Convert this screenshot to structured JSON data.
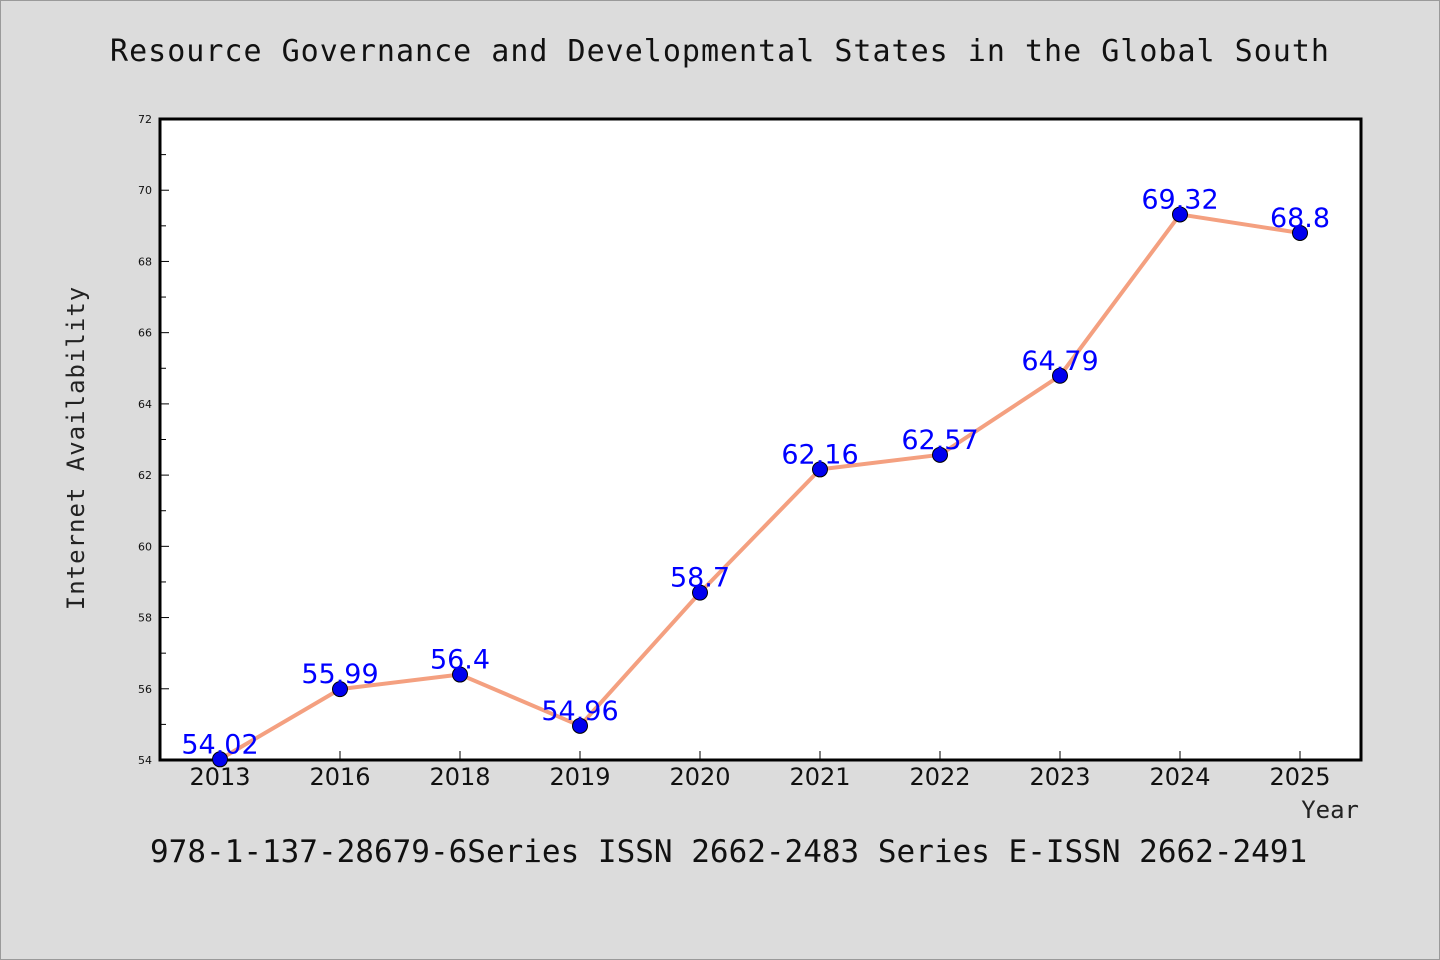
{
  "chart_data": {
    "type": "line",
    "title": "Resource Governance and Developmental States in the Global South",
    "xlabel": "Year",
    "ylabel": "Internet Availability",
    "categories": [
      "2013",
      "2016",
      "2018",
      "2019",
      "2020",
      "2021",
      "2022",
      "2023",
      "2024",
      "2025"
    ],
    "series": [
      {
        "values": [
          54.02,
          55.99,
          56.4,
          54.96,
          58.7,
          62.16,
          62.57,
          64.79,
          69.32,
          68.8
        ],
        "data_labels": [
          "54.02",
          "55.99",
          "56.4",
          "54.96",
          "58.7",
          "62.16",
          "62.57",
          "64.79",
          "69.32",
          "68.8"
        ]
      }
    ],
    "ylim": [
      54,
      72
    ],
    "yticks": [
      54,
      56,
      58,
      60,
      62,
      64,
      66,
      68,
      70,
      72
    ],
    "grid": false,
    "line_color": "#f4a080",
    "marker_color": "#0000ee",
    "label_color": "#0000ff"
  },
  "footer": {
    "text": "978-1-137-28679-6Series ISSN 2662-2483 Series E-ISSN 2662-2491"
  }
}
